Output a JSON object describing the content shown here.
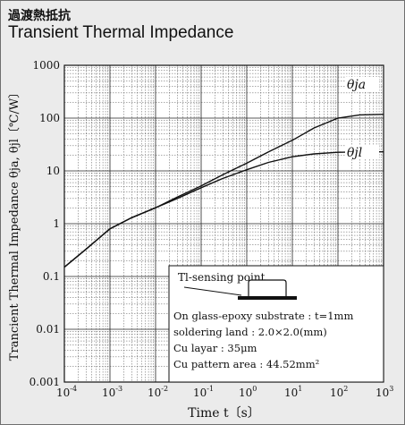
{
  "header": {
    "title_jp": "過渡熱抵抗",
    "title_en": "Transient Thermal Impedance"
  },
  "chart_data": {
    "type": "line",
    "title": "Transient Thermal Impedance",
    "xlabel": "Time  t〔s〕",
    "ylabel": "Trancient Thermal Impedance  θja, θjl〔℃/W〕",
    "xscale": "log",
    "yscale": "log",
    "xlim": [
      0.0001,
      1000
    ],
    "ylim": [
      0.001,
      1000
    ],
    "grid": true,
    "x_ticks": [
      {
        "base": "10",
        "exp": "-4"
      },
      {
        "base": "10",
        "exp": "-3"
      },
      {
        "base": "10",
        "exp": "-2"
      },
      {
        "base": "10",
        "exp": "-1"
      },
      {
        "base": "10",
        "exp": "0"
      },
      {
        "base": "10",
        "exp": "1"
      },
      {
        "base": "10",
        "exp": "2"
      },
      {
        "base": "10",
        "exp": "3"
      }
    ],
    "y_ticks": [
      "0.001",
      "0.01",
      "0.1",
      "1",
      "10",
      "100",
      "1000"
    ],
    "series": [
      {
        "name": "θja",
        "x": [
          0.0001,
          0.0003,
          0.001,
          0.003,
          0.01,
          0.03,
          0.1,
          0.3,
          1,
          3,
          10,
          30,
          100,
          300,
          1000
        ],
        "y": [
          0.15,
          0.33,
          0.8,
          1.3,
          2.0,
          3.2,
          5.2,
          8.5,
          14,
          23,
          38,
          65,
          100,
          115,
          118
        ]
      },
      {
        "name": "θjl",
        "x": [
          0.0001,
          0.0003,
          0.001,
          0.003,
          0.01,
          0.03,
          0.1,
          0.3,
          1,
          3,
          10,
          30,
          100,
          300,
          1000
        ],
        "y": [
          0.15,
          0.33,
          0.8,
          1.3,
          2.0,
          3.0,
          4.8,
          7.2,
          10.5,
          14.5,
          18.5,
          21,
          22.5,
          23,
          23
        ]
      }
    ],
    "legend_box": {
      "sensing_label": "Tl-sensing point",
      "lines": [
        "On glass-epoxy substrate : t=1mm",
        "soldering land : 2.0×2.0(mm)",
        "Cu layar : 35μm",
        "Cu pattern area : 44.52mm²"
      ]
    }
  }
}
